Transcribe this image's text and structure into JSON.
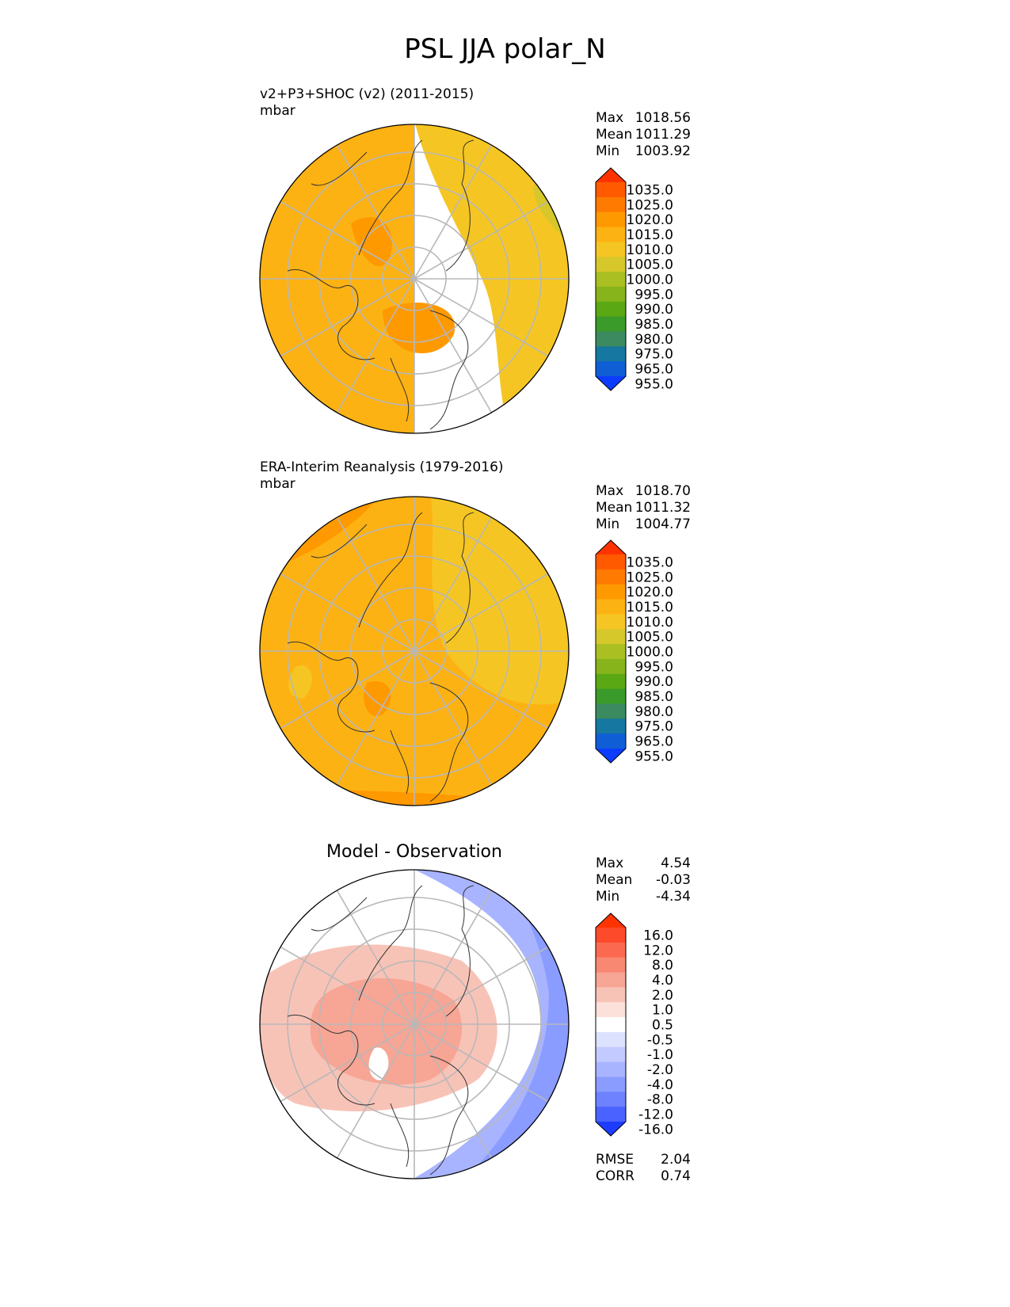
{
  "title": "PSL JJA polar_N",
  "chart_data": [
    {
      "type": "heatmap",
      "projection": "north polar stereographic",
      "title": "v2+P3+SHOC (v2) (2011-2015)",
      "units": "mbar",
      "stats": [
        {
          "label": "Max",
          "value": "1018.56"
        },
        {
          "label": "Mean",
          "value": "1011.29"
        },
        {
          "label": "Min",
          "value": "1003.92"
        }
      ],
      "colorbar": {
        "ticks": [
          "1035.0",
          "1025.0",
          "1020.0",
          "1015.0",
          "1010.0",
          "1005.0",
          "1000.0",
          "995.0",
          "990.0",
          "985.0",
          "980.0",
          "975.0",
          "965.0",
          "955.0"
        ],
        "colors": [
          "#ff3300",
          "#ff5a00",
          "#ff7a00",
          "#ff9900",
          "#fdb213",
          "#f5c623",
          "#d6c72a",
          "#aabf22",
          "#86b41a",
          "#5aa814",
          "#3a9a2a",
          "#3c8a60",
          "#1677a0",
          "#0f5ed6",
          "#0b3cff"
        ],
        "extend": "both"
      },
      "field_description": "mostly 1010-1015 orange; eastern hemisphere / Eurasia yellow 1005-1010; small patch of darker orange (1015-1020) near Greenland and North Atlantic; greenish-yellow edge near 135E"
    },
    {
      "type": "heatmap",
      "projection": "north polar stereographic",
      "title": "ERA-Interim Reanalysis (1979-2016)",
      "units": "mbar",
      "stats": [
        {
          "label": "Max",
          "value": "1018.70"
        },
        {
          "label": "Mean",
          "value": "1011.32"
        },
        {
          "label": "Min",
          "value": "1004.77"
        }
      ],
      "colorbar": {
        "ticks": [
          "1035.0",
          "1025.0",
          "1020.0",
          "1015.0",
          "1010.0",
          "1005.0",
          "1000.0",
          "995.0",
          "990.0",
          "985.0",
          "980.0",
          "975.0",
          "965.0",
          "955.0"
        ],
        "colors": [
          "#ff3300",
          "#ff5a00",
          "#ff7a00",
          "#ff9900",
          "#fdb213",
          "#f5c623",
          "#d6c72a",
          "#aabf22",
          "#86b41a",
          "#5aa814",
          "#3a9a2a",
          "#3c8a60",
          "#1677a0",
          "#0f5ed6",
          "#0b3cff"
        ],
        "extend": "both"
      },
      "field_description": "mostly 1010-1015 orange; Eurasian sector 1005-1010 yellow; darker orange band near North Pacific edge and Atlantic"
    },
    {
      "type": "heatmap",
      "projection": "north polar stereographic",
      "title": "Model - Observation",
      "units": "",
      "stats": [
        {
          "label": "Max",
          "value": "4.54"
        },
        {
          "label": "Mean",
          "value": "-0.03"
        },
        {
          "label": "Min",
          "value": "-4.34"
        }
      ],
      "metrics": [
        {
          "label": "RMSE",
          "value": "2.04"
        },
        {
          "label": "CORR",
          "value": "0.74"
        }
      ],
      "colorbar": {
        "ticks": [
          "16.0",
          "12.0",
          "8.0",
          "4.0",
          "2.0",
          "1.0",
          "0.5",
          "-0.5",
          "-1.0",
          "-2.0",
          "-4.0",
          "-8.0",
          "-12.0",
          "-16.0"
        ],
        "colors": [
          "#ff3300",
          "#fd4a2a",
          "#fb6a50",
          "#f98872",
          "#f7a595",
          "#f8c3b7",
          "#fbe1da",
          "#ffffff",
          "#dde2ff",
          "#c2caff",
          "#a8b4ff",
          "#8a9cff",
          "#6e82ff",
          "#4a62ff",
          "#1e3cff"
        ],
        "extend": "both"
      },
      "field_description": "positive (red, 1-4) over central Arctic, Greenland and North America; negative (blue, -1 to -4) over Eurasia / North Pacific edges"
    }
  ]
}
